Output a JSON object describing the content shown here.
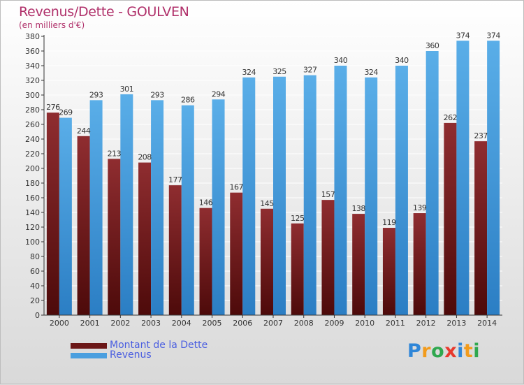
{
  "title": "Revenus/Dette - GOULVEN",
  "subtitle": "(en milliers d'€)",
  "colors": {
    "dette_dark": "#4d0a0a",
    "dette_light": "#8f2d30",
    "revenus_dark": "#2b7ec4",
    "revenus_light": "#5aaee8",
    "axis": "#333333",
    "grid": "#ffffff",
    "title": "#b0306a",
    "legend_text": "#4a5ee0"
  },
  "legend": {
    "items": [
      {
        "label": "Montant de la Dette",
        "color": "#6b1717"
      },
      {
        "label": "Revenus",
        "color": "#4a9fdf"
      }
    ]
  },
  "logo": {
    "letters": [
      {
        "ch": "P",
        "color": "#2f86d8"
      },
      {
        "ch": "r",
        "color": "#f29b1c"
      },
      {
        "ch": "o",
        "color": "#2fa84f"
      },
      {
        "ch": "x",
        "color": "#e8392d"
      },
      {
        "ch": "i",
        "color": "#2f86d8"
      },
      {
        "ch": "t",
        "color": "#f29b1c"
      },
      {
        "ch": "i",
        "color": "#2fa84f"
      }
    ]
  },
  "chart_data": {
    "type": "bar",
    "categories": [
      "2000",
      "2001",
      "2002",
      "2003",
      "2004",
      "2005",
      "2006",
      "2007",
      "2008",
      "2009",
      "2010",
      "2011",
      "2012",
      "2013",
      "2014"
    ],
    "series": [
      {
        "name": "Montant de la Dette",
        "values": [
          276,
          244,
          213,
          208,
          177,
          146,
          167,
          145,
          125,
          157,
          138,
          119,
          139,
          262,
          237
        ]
      },
      {
        "name": "Revenus",
        "values": [
          269,
          293,
          301,
          293,
          286,
          294,
          324,
          325,
          327,
          340,
          324,
          340,
          360,
          374,
          374
        ]
      }
    ],
    "ylim": [
      0,
      380
    ],
    "ytick_step": 20,
    "grid": true,
    "legend_position": "bottom-left"
  }
}
